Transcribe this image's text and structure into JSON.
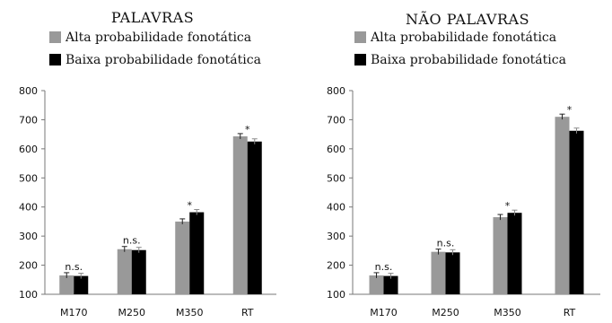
{
  "chart_data": [
    {
      "type": "bar",
      "title": "PALAVRAS",
      "categories": [
        "M170",
        "M250",
        "M350",
        "RT"
      ],
      "series": [
        {
          "name": "Alta probabilidade fonotática",
          "values": [
            165,
            255,
            350,
            643
          ],
          "color": "#999999"
        },
        {
          "name": "Baixa probabilidade fonotática",
          "values": [
            163,
            252,
            382,
            625
          ],
          "color": "#000000"
        }
      ],
      "annotations": [
        "n.s.",
        "n.s.",
        "*",
        "*"
      ],
      "ylim": [
        100,
        800
      ],
      "yticks": [
        100,
        200,
        300,
        400,
        500,
        600,
        700,
        800
      ],
      "error_bars": true,
      "legend_position": "top"
    },
    {
      "type": "bar",
      "title": "NÃO PALAVRAS",
      "categories": [
        "M170",
        "M250",
        "M350",
        "RT"
      ],
      "series": [
        {
          "name": "Alta probabilidade fonotática",
          "values": [
            165,
            246,
            365,
            710
          ],
          "color": "#999999"
        },
        {
          "name": "Baixa probabilidade fonotática",
          "values": [
            163,
            244,
            380,
            662
          ],
          "color": "#000000"
        }
      ],
      "annotations": [
        "n.s.",
        "n.s.",
        "*",
        "*"
      ],
      "ylim": [
        100,
        800
      ],
      "yticks": [
        100,
        200,
        300,
        400,
        500,
        600,
        700,
        800
      ],
      "error_bars": true,
      "legend_position": "top"
    }
  ]
}
